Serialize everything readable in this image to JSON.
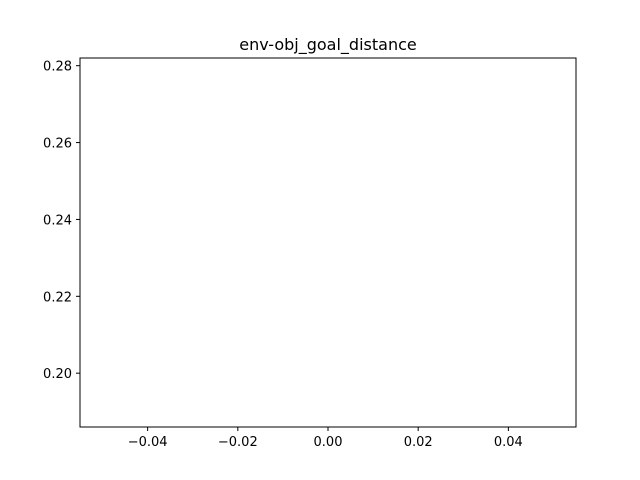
{
  "chart_data": {
    "type": "scatter",
    "title": "env-obj_goal_distance",
    "xlabel": "",
    "ylabel": "",
    "series": [
      {
        "x": [],
        "y": []
      }
    ],
    "xlim": [
      -0.055,
      0.055
    ],
    "ylim": [
      0.186,
      0.282
    ],
    "xticks": [
      -0.04,
      -0.02,
      0.0,
      0.02,
      0.04
    ],
    "xtick_labels": [
      "−0.04",
      "−0.02",
      "0.00",
      "0.02",
      "0.04"
    ],
    "yticks": [
      0.2,
      0.22,
      0.24,
      0.26,
      0.28
    ],
    "ytick_labels": [
      "0.20",
      "0.22",
      "0.24",
      "0.26",
      "0.28"
    ],
    "grid": false,
    "legend": "none",
    "colors": {
      "axis": "#000000",
      "background": "#ffffff"
    }
  }
}
